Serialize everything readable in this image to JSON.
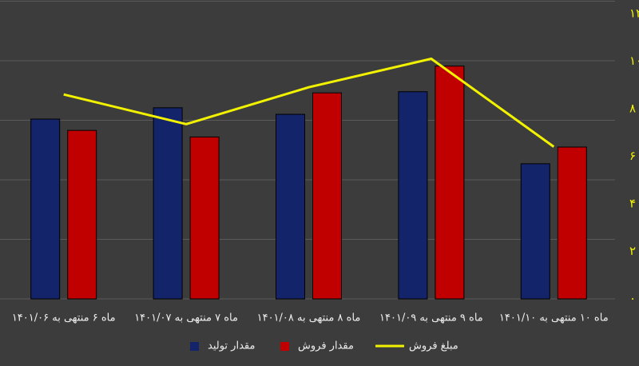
{
  "chart_data": {
    "type": "bar_line",
    "categories": [
      "ماه ۶ منتهی به ۱۴۰۱/۰۶",
      "ماه ۷ منتهی به ۱۴۰۱/۰۷",
      "ماه ۸ منتهی به ۱۴۰۱/۰۸",
      "ماه ۹ منتهی به ۱۴۰۱/۰۹",
      "ماه ۱۰ منتهی به ۱۴۰۱/۱۰"
    ],
    "series": [
      {
        "name": "مقدار تولید",
        "type": "bar",
        "color": "#13246b",
        "values": [
          3.02,
          3.21,
          3.1,
          3.48,
          2.27
        ]
      },
      {
        "name": "مقدار فروش",
        "type": "bar",
        "color": "#c00000",
        "values": [
          2.83,
          2.72,
          3.46,
          3.91,
          2.55
        ]
      },
      {
        "name": "مبلغ فروش",
        "type": "line",
        "axis": "y2",
        "color": "#f2f200",
        "values": [
          8.6,
          7.35,
          8.9,
          10.1,
          6.4
        ]
      }
    ],
    "ylim": [
      0,
      5
    ],
    "yticks": [
      0,
      1,
      2,
      3,
      4,
      5
    ],
    "y2lim": [
      0,
      12
    ],
    "y2ticks": [
      {
        "value": 0,
        "label": "۰"
      },
      {
        "value": 2,
        "label": "۲"
      },
      {
        "value": 4,
        "label": "۴"
      },
      {
        "value": 6,
        "label": "۶"
      },
      {
        "value": 8,
        "label": "۸"
      },
      {
        "value": 10,
        "label": "۱۰"
      },
      {
        "value": 12,
        "label": "۱۲"
      }
    ],
    "grid": true
  }
}
